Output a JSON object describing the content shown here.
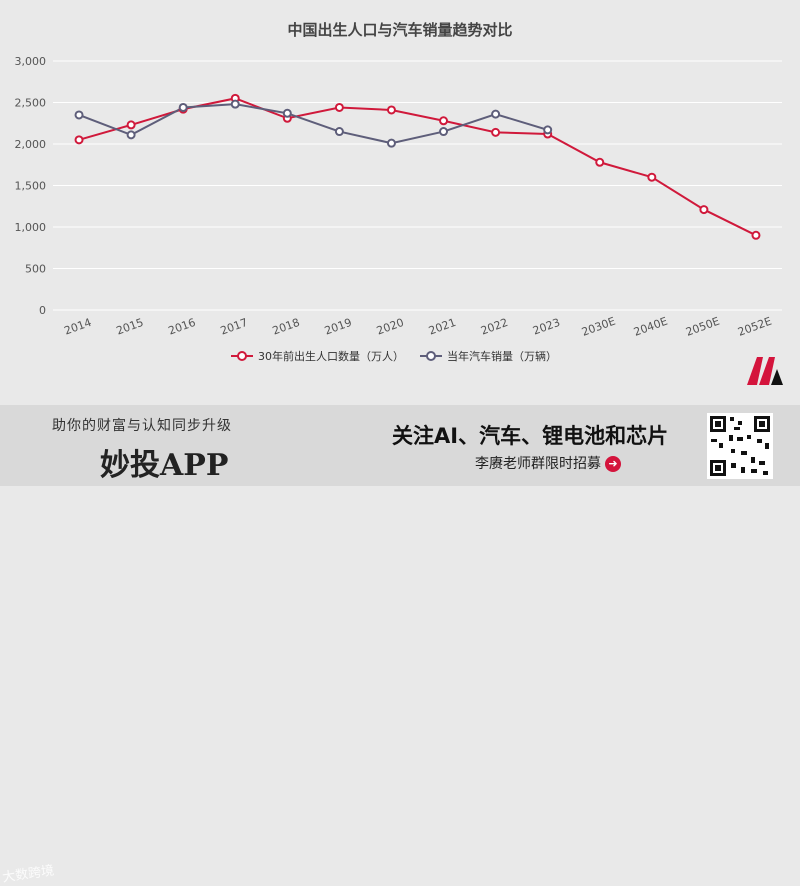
{
  "chart_data": {
    "type": "line",
    "title": "中国出生人口与汽车销量趋势对比",
    "categories": [
      "2014",
      "2015",
      "2016",
      "2017",
      "2018",
      "2019",
      "2020",
      "2021",
      "2022",
      "2023",
      "2030E",
      "2040E",
      "2050E",
      "2052E"
    ],
    "ylim": [
      0,
      3000
    ],
    "yticks": [
      "0",
      "500",
      "1,000",
      "1,500",
      "2,000",
      "2,500",
      "3,000"
    ],
    "ytick_values": [
      0,
      500,
      1000,
      1500,
      2000,
      2500,
      3000
    ],
    "grid": true,
    "legend_position": "bottom",
    "series": [
      {
        "name": "30年前出生人口数量（万人）",
        "color": "#d0193b",
        "values": [
          2050,
          2230,
          2420,
          2550,
          2310,
          2440,
          2410,
          2280,
          2140,
          2120,
          1780,
          1600,
          1210,
          900
        ]
      },
      {
        "name": "当年汽车销量（万辆）",
        "color": "#5e5e7a",
        "values": [
          2350,
          2110,
          2440,
          2480,
          2370,
          2150,
          2010,
          2150,
          2360,
          2170,
          null,
          null,
          null,
          null
        ]
      }
    ]
  },
  "footer": {
    "slogan": "助你的财富与认知同步升级",
    "app_name": "妙投APP",
    "headline": "关注AI、汽车、锂电池和芯片",
    "sub_line": "李赓老师群限时招募",
    "watermark": "大数跨境"
  },
  "colors": {
    "background": "#e9e9e9",
    "grid": "#ffffff",
    "accent": "#d0193b",
    "series2": "#5e5e7a"
  }
}
